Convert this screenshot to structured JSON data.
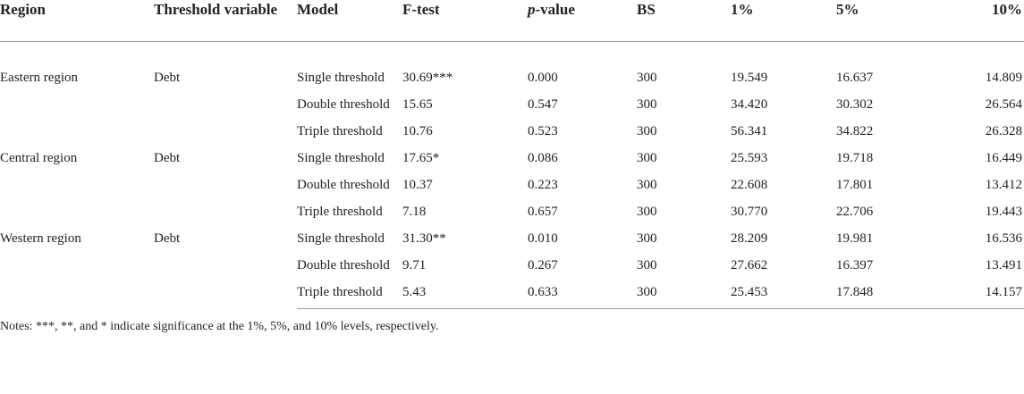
{
  "table": {
    "header": [
      "Region",
      "Threshold variable",
      "Model",
      "F-test",
      [
        "p",
        "-value"
      ],
      "BS",
      "1%",
      "5%",
      "10%"
    ],
    "groups": [
      {
        "region": "Eastern region",
        "threshold_variable": "Debt",
        "rows": [
          [
            "Single threshold",
            "30.69***",
            "0.000",
            "300",
            "19.549",
            "16.637",
            "14.809"
          ],
          [
            "Double threshold",
            "15.65",
            "0.547",
            "300",
            "34.420",
            "30.302",
            "26.564"
          ],
          [
            "Triple threshold",
            "10.76",
            "0.523",
            "300",
            "56.341",
            "34.822",
            "26.328"
          ]
        ]
      },
      {
        "region": "Central region",
        "threshold_variable": "Debt",
        "rows": [
          [
            "Single threshold",
            "17.65*",
            "0.086",
            "300",
            "25.593",
            "19.718",
            "16.449"
          ],
          [
            "Double threshold",
            "10.37",
            "0.223",
            "300",
            "22.608",
            "17.801",
            "13.412"
          ],
          [
            "Triple threshold",
            "7.18",
            "0.657",
            "300",
            "30.770",
            "22.706",
            "19.443"
          ]
        ]
      },
      {
        "region": "Western region",
        "threshold_variable": "Debt",
        "rows": [
          [
            "Single threshold",
            "31.30**",
            "0.010",
            "300",
            "28.209",
            "19.981",
            "16.536"
          ],
          [
            "Double threshold",
            "9.71",
            "0.267",
            "300",
            "27.662",
            "16.397",
            "13.491"
          ],
          [
            "Triple threshold",
            "5.43",
            "0.633",
            "300",
            "25.453",
            "17.848",
            "14.157"
          ]
        ]
      }
    ],
    "notes": "Notes: ***, **, and * indicate significance at the 1%, 5%, and 10% levels, respectively."
  }
}
